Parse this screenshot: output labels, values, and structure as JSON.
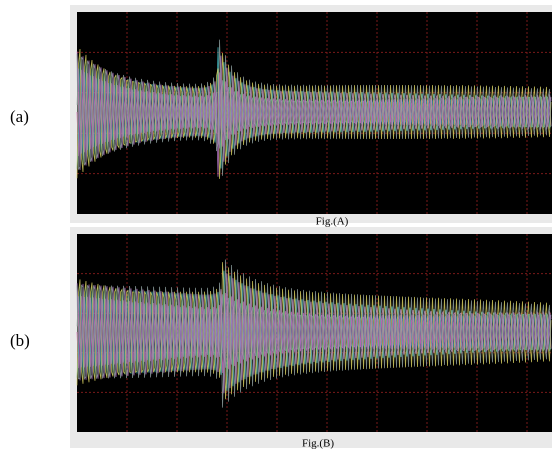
{
  "figure": {
    "panels": [
      {
        "label": "(a)",
        "caption": "Fig.(A)"
      },
      {
        "label": "(b)",
        "caption": "Fig.(B)"
      }
    ]
  }
}
